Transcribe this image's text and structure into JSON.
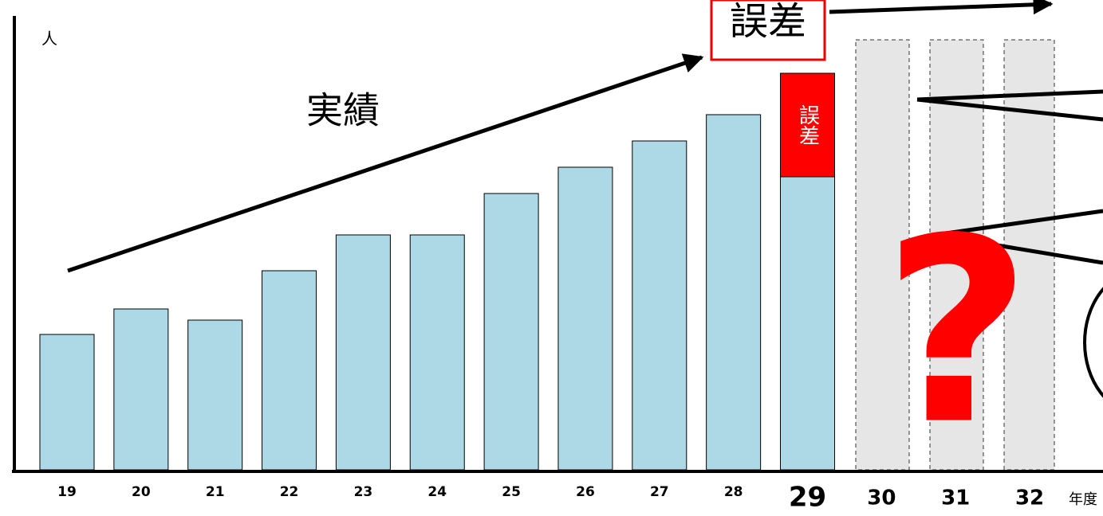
{
  "chart_data": {
    "type": "bar",
    "y_label": "人",
    "x_label": "年度",
    "annotations": [
      "誤差",
      "?"
    ],
    "categories": [
      "19",
      "20",
      "21",
      "22",
      "23",
      "24",
      "25",
      "26",
      "27",
      "28",
      "29",
      "30",
      "31",
      "32"
    ],
    "series": [
      {
        "name": "実績",
        "color": "#add8e6",
        "values": [
          170,
          202,
          188,
          250,
          295,
          295,
          347,
          380,
          413,
          446,
          368,
          null,
          null,
          null
        ]
      },
      {
        "name": "誤差",
        "color": "#ff0000",
        "values": [
          null,
          null,
          null,
          null,
          null,
          null,
          null,
          null,
          null,
          null,
          130,
          null,
          null,
          null
        ]
      }
    ]
  }
}
